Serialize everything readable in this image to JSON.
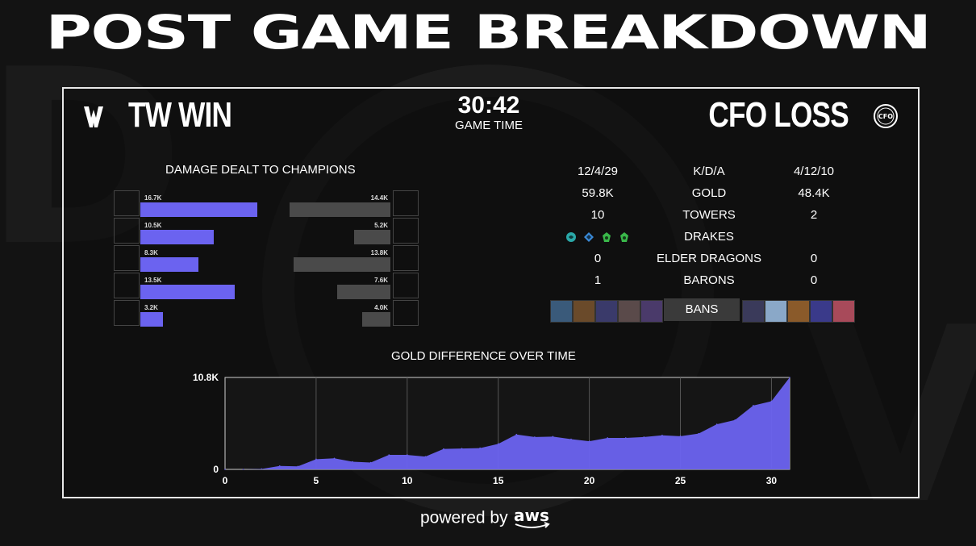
{
  "page_title": "POST GAME BREAKDOWN",
  "left_team": {
    "name": "TW",
    "result": "WIN",
    "label": "TW WIN"
  },
  "right_team": {
    "name": "CFO",
    "result": "LOSS",
    "label": "CFO LOSS",
    "logo_text": "CFO"
  },
  "game_time": {
    "value": "30:42",
    "label": "GAME TIME"
  },
  "damage": {
    "title": "DAMAGE DEALT TO CHAMPIONS",
    "left": [
      {
        "value": "16.7K",
        "amount": 16.7,
        "color": "#6b4a3a"
      },
      {
        "value": "10.5K",
        "amount": 10.5,
        "color": "#8a5a2a"
      },
      {
        "value": "8.3K",
        "amount": 8.3,
        "color": "#5a3a8a"
      },
      {
        "value": "13.5K",
        "amount": 13.5,
        "color": "#7a3a4a"
      },
      {
        "value": "3.2K",
        "amount": 3.2,
        "color": "#c8b0a0"
      }
    ],
    "right": [
      {
        "value": "14.4K",
        "amount": 14.4,
        "color": "#3a8aa8"
      },
      {
        "value": "5.2K",
        "amount": 5.2,
        "color": "#a84a3a"
      },
      {
        "value": "13.8K",
        "amount": 13.8,
        "color": "#4a4a8a"
      },
      {
        "value": "7.6K",
        "amount": 7.6,
        "color": "#3a3a5a"
      },
      {
        "value": "4.0K",
        "amount": 4.0,
        "color": "#c89a3a"
      }
    ]
  },
  "stats": {
    "rows": [
      {
        "left": "12/4/29",
        "label": "K/D/A",
        "right": "4/12/10"
      },
      {
        "left": "59.8K",
        "label": "GOLD",
        "right": "48.4K"
      },
      {
        "left": "10",
        "label": "TOWERS",
        "right": "2"
      },
      {
        "left": "",
        "label": "DRAKES",
        "right": ""
      },
      {
        "left": "0",
        "label": "ELDER DRAGONS",
        "right": "0"
      },
      {
        "left": "1",
        "label": "BARONS",
        "right": "0"
      }
    ],
    "left_drakes": [
      {
        "icon": "ocean-drake-icon",
        "color": "#2aa8a8"
      },
      {
        "icon": "cloud-drake-icon",
        "color": "#3a8ad8"
      },
      {
        "icon": "chemtech-drake-icon",
        "color": "#3ab84a"
      },
      {
        "icon": "chemtech-drake-icon",
        "color": "#3ab84a"
      }
    ],
    "bans_label": "BANS",
    "left_bans": [
      "#3a5a7a",
      "#6a4a2a",
      "#3a3a6a",
      "#5a4a4a",
      "#4a3a6a"
    ],
    "right_bans": [
      "#3a3a5a",
      "#8aa8c8",
      "#8a5a2a",
      "#3a3a8a",
      "#a84a5a"
    ]
  },
  "gold_chart_title": "GOLD DIFFERENCE OVER TIME",
  "chart_data": {
    "type": "area",
    "title": "GOLD DIFFERENCE OVER TIME",
    "xlabel": "",
    "ylabel": "",
    "x_ticks": [
      "0",
      "5",
      "10",
      "15",
      "20",
      "25",
      "30"
    ],
    "y_ticks": [
      "0",
      "10.8K"
    ],
    "xlim": [
      0,
      31
    ],
    "ylim": [
      0,
      10800
    ],
    "grid": true,
    "color": "#6b63f0",
    "x": [
      0,
      1,
      2,
      3,
      4,
      5,
      6,
      7,
      8,
      9,
      10,
      11,
      12,
      13,
      14,
      15,
      16,
      17,
      18,
      19,
      20,
      21,
      22,
      23,
      24,
      25,
      26,
      27,
      28,
      29,
      30,
      31
    ],
    "values": [
      0,
      0,
      50,
      400,
      350,
      1200,
      1300,
      900,
      800,
      1700,
      1700,
      1500,
      2400,
      2450,
      2500,
      3000,
      4100,
      3800,
      3850,
      3550,
      3300,
      3700,
      3700,
      3800,
      4000,
      3900,
      4200,
      5300,
      5800,
      7500,
      8000,
      10800
    ]
  },
  "footer": {
    "powered_by": "powered by",
    "brand": "aws"
  }
}
